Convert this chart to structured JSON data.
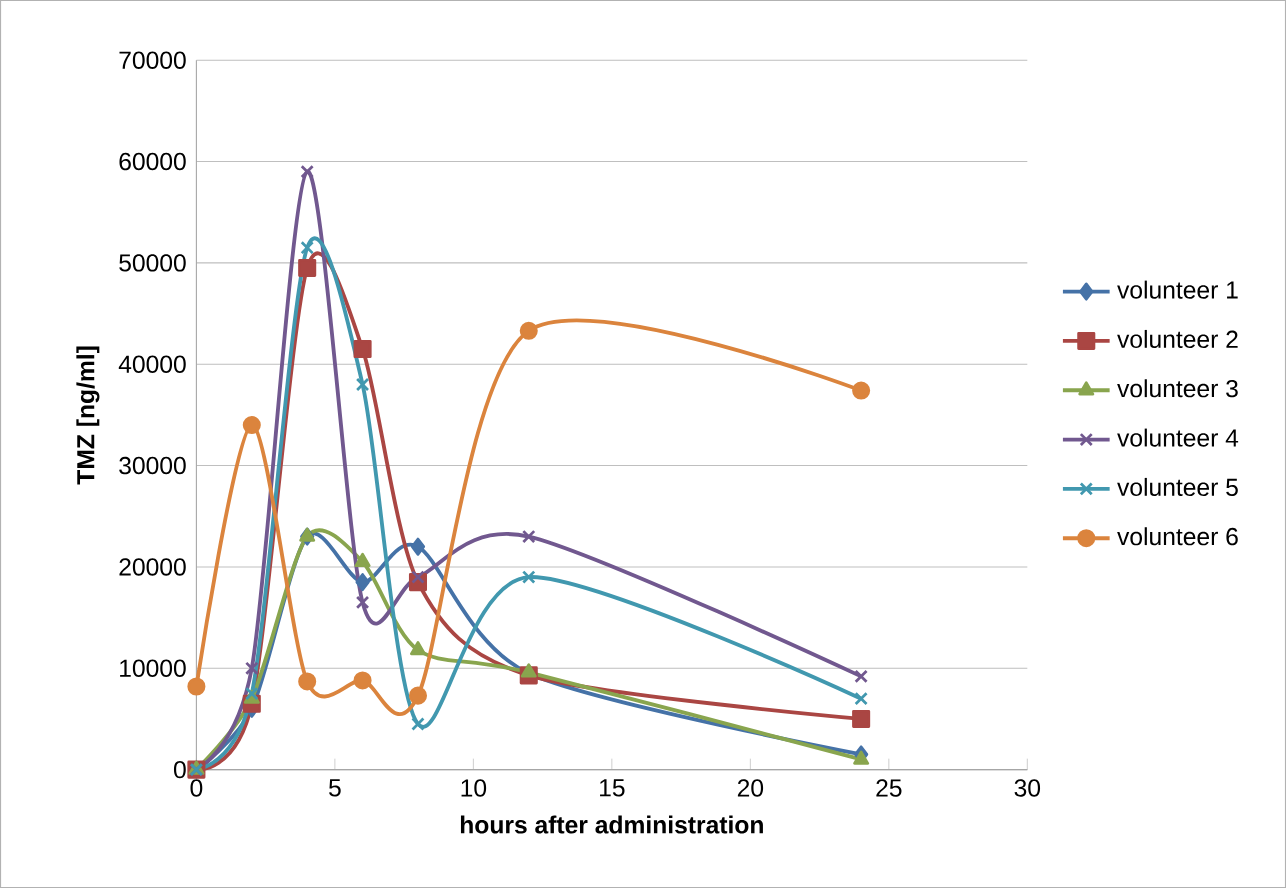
{
  "chart_data": {
    "type": "line",
    "xlabel": "hours after administration",
    "ylabel": "TMZ [ng/ml]",
    "x": [
      0,
      2,
      4,
      6,
      8,
      12,
      24
    ],
    "xlim": [
      0,
      30
    ],
    "xticks": [
      0,
      5,
      10,
      15,
      20,
      25,
      30
    ],
    "ylim": [
      0,
      70000
    ],
    "yticks": [
      0,
      10000,
      20000,
      30000,
      40000,
      50000,
      60000,
      70000
    ],
    "grid": "y",
    "legend": "right",
    "series": [
      {
        "name": "volunteer 1",
        "color": "#4572a7",
        "marker": "diamond",
        "values": [
          0,
          6000,
          23000,
          18500,
          22000,
          9500,
          1500
        ]
      },
      {
        "name": "volunteer 2",
        "color": "#aa4643",
        "marker": "square",
        "values": [
          0,
          6500,
          49500,
          41500,
          18500,
          9300,
          5000
        ]
      },
      {
        "name": "volunteer 3",
        "color": "#89a54e",
        "marker": "triangle",
        "values": [
          0,
          7000,
          23000,
          20500,
          11800,
          9600,
          1000
        ]
      },
      {
        "name": "volunteer 4",
        "color": "#71588f",
        "marker": "cross",
        "values": [
          0,
          10000,
          59000,
          16500,
          19000,
          23000,
          9200
        ]
      },
      {
        "name": "volunteer 5",
        "color": "#4198af",
        "marker": "cross",
        "values": [
          0,
          7500,
          51500,
          38000,
          4500,
          19000,
          7000
        ]
      },
      {
        "name": "volunteer 6",
        "color": "#db843d",
        "marker": "circle",
        "values": [
          8200,
          34000,
          8700,
          8800,
          7300,
          43300,
          37400
        ]
      }
    ]
  }
}
